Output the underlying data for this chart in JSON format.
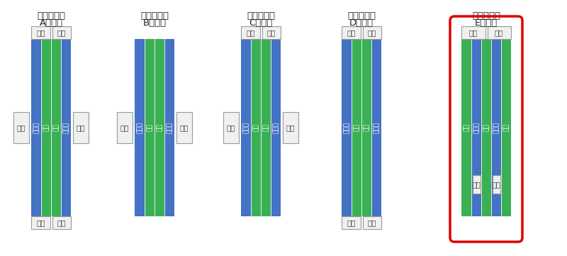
{
  "blue": "#4472c4",
  "green": "#3ab054",
  "white": "#ffffff",
  "red_border": "#dd0000",
  "bg": "#ffffff",
  "diagrams": [
    {
      "title_line1": "ホーム左右",
      "title_line2": "Aタイプ",
      "type": "A",
      "highlight": false,
      "columns": [
        "blue",
        "green",
        "green",
        "blue"
      ],
      "has_top_stairs": true,
      "has_bottom_stairs": true,
      "has_left_stair": true,
      "has_right_stair": true,
      "has_mid_stairs": false,
      "stair_top_labels": [
        "階段",
        "階段"
      ],
      "stair_bottom_labels": [
        "階段",
        "階段"
      ],
      "stair_left_label": "階段",
      "stair_right_label": "階段",
      "col_labels": [
        "ホ｜ム",
        "線路",
        "線路",
        "ホ｜ム"
      ],
      "col_label_colors": [
        "white",
        "white",
        "white",
        "white"
      ]
    },
    {
      "title_line1": "ホーム左右",
      "title_line2": "Bタイプ",
      "type": "B",
      "highlight": false,
      "columns": [
        "blue",
        "green",
        "green",
        "blue"
      ],
      "has_top_stairs": false,
      "has_bottom_stairs": false,
      "has_left_stair": true,
      "has_right_stair": true,
      "has_mid_stairs": false,
      "stair_top_labels": [],
      "stair_bottom_labels": [],
      "stair_left_label": "階段",
      "stair_right_label": "階段",
      "col_labels": [
        "ホ｜ム",
        "線路",
        "線路",
        "ホ｜ム"
      ],
      "col_label_colors": [
        "white",
        "white",
        "white",
        "white"
      ]
    },
    {
      "title_line1": "ホーム左右",
      "title_line2": "Cタイプ",
      "type": "C",
      "highlight": false,
      "columns": [
        "blue",
        "green",
        "green",
        "blue"
      ],
      "has_top_stairs": true,
      "has_bottom_stairs": false,
      "has_left_stair": true,
      "has_right_stair": true,
      "has_mid_stairs": false,
      "stair_top_labels": [
        "階段",
        "階段"
      ],
      "stair_bottom_labels": [],
      "stair_left_label": "階段",
      "stair_right_label": "階段",
      "col_labels": [
        "ホ｜ム",
        "線路",
        "線路",
        "ホ｜ム"
      ],
      "col_label_colors": [
        "white",
        "white",
        "white",
        "white"
      ]
    },
    {
      "title_line1": "ホーム左右",
      "title_line2": "Dタイプ",
      "type": "D",
      "highlight": false,
      "columns": [
        "blue",
        "green",
        "green",
        "blue"
      ],
      "has_top_stairs": true,
      "has_bottom_stairs": true,
      "has_left_stair": false,
      "has_right_stair": false,
      "has_mid_stairs": false,
      "stair_top_labels": [
        "階段",
        "階段"
      ],
      "stair_bottom_labels": [
        "階段",
        "階段"
      ],
      "stair_left_label": "",
      "stair_right_label": "",
      "col_labels": [
        "ホ｜ム",
        "線路",
        "線路",
        "ホ｜ム"
      ],
      "col_label_colors": [
        "white",
        "white",
        "white",
        "white"
      ]
    },
    {
      "title_line1": "ホーム左右",
      "title_line2": "Eタイプ",
      "type": "E",
      "highlight": true,
      "columns": [
        "green",
        "blue",
        "green",
        "blue",
        "green"
      ],
      "has_top_stairs": true,
      "has_bottom_stairs": false,
      "has_left_stair": false,
      "has_right_stair": false,
      "has_mid_stairs": true,
      "stair_top_labels": [
        "階段",
        "階段"
      ],
      "stair_bottom_labels": [],
      "stair_mid_labels": [
        "階段",
        "階段"
      ],
      "stair_left_label": "",
      "stair_right_label": "",
      "col_labels": [
        "線路",
        "ホ｜ム",
        "線路",
        "ホ｜ム",
        "線路"
      ],
      "col_label_colors": [
        "white",
        "white",
        "white",
        "white",
        "white"
      ]
    }
  ]
}
